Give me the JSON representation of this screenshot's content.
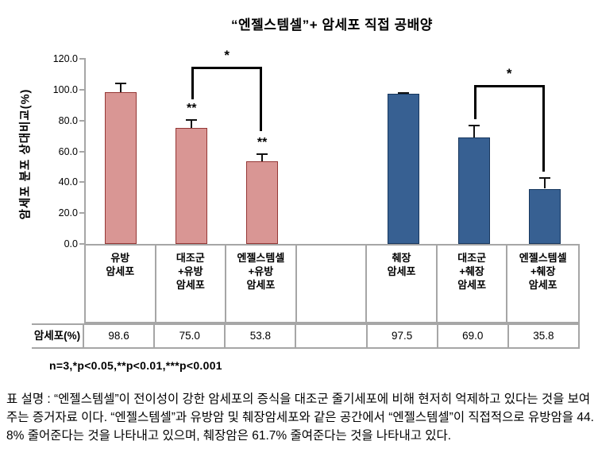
{
  "title": "“엔젤스템셀”+ 암세포 직접 공배양",
  "significance_note": "n=3,*p<0.05,**p<0.01,***p<0.001",
  "caption": "표 설명 : “엔젤스템셀”이 전이성이 강한 암세포의 증식을 대조군 줄기세포에 비해 현저히 억제하고 있다는 것을 보여주는 증거자료 이다. “엔젤스템셀”과 유방암 및 췌장암세포와 같은 공간에서 “엔젤스템셀”이 직접적으로 유방암을 44.8% 줄어준다는 것을 나타내고 있으며, 췌장암은 61.7% 줄여준다는 것을 나타내고 있다.",
  "colors": {
    "breast_fill": "#d99694",
    "breast_stroke": "#953735",
    "pancreas_fill": "#376092",
    "pancreas_stroke": "#17375e",
    "axis_line": "#a6a6a6",
    "error_bar": "#111111",
    "text": "#000000"
  },
  "chart_data": {
    "type": "bar",
    "title": "“엔젤스템셀”+ 암세포 직접 공배양",
    "ylabel": "암세포 분포 상대비교(%)",
    "xlabel": "",
    "ylim": [
      0,
      120
    ],
    "yticks": [
      0,
      20,
      40,
      60,
      80,
      100,
      120
    ],
    "ytick_labels": [
      "0.0",
      "20.0",
      "40.0",
      "60.0",
      "80.0",
      "100.0",
      "120.0"
    ],
    "grid": false,
    "legend_position": "none",
    "categories": [
      "유방\n암세포",
      "대조군\n+유방\n암세포",
      "엔젤스템셀\n+유방\n암세포",
      "",
      "췌장\n암세포",
      "대조군\n+췌장\n암세포",
      "엔젤스템셀\n+췌장\n암세포"
    ],
    "values": [
      98.6,
      75.0,
      53.8,
      null,
      97.5,
      69.0,
      35.8
    ],
    "errors": [
      6,
      6,
      5,
      null,
      0.8,
      8,
      7.3
    ],
    "bar_significance": [
      "",
      "**",
      "**",
      "",
      "",
      "",
      ""
    ],
    "bar_fill": [
      "#d99694",
      "#d99694",
      "#d99694",
      null,
      "#376092",
      "#376092",
      "#376092"
    ],
    "bar_stroke": [
      "#953735",
      "#953735",
      "#953735",
      null,
      "#17375e",
      "#17375e",
      "#17375e"
    ],
    "series_names": [
      "유방 암세포 (pink)",
      "췌장 암세포 (blue)"
    ],
    "comparison_brackets": [
      {
        "from_col": 1,
        "to_col": 2,
        "label": "*",
        "line_y": 115,
        "from_leg_end": 95,
        "to_leg_end": 74
      },
      {
        "from_col": 5,
        "to_col": 6,
        "label": "*",
        "line_y": 103,
        "from_leg_end": 82,
        "to_leg_end": 48
      }
    ],
    "value_row": {
      "header": "암세포(%)",
      "values": [
        "98.6",
        "75.0",
        "53.8",
        "",
        "97.5",
        "69.0",
        "35.8"
      ]
    }
  }
}
